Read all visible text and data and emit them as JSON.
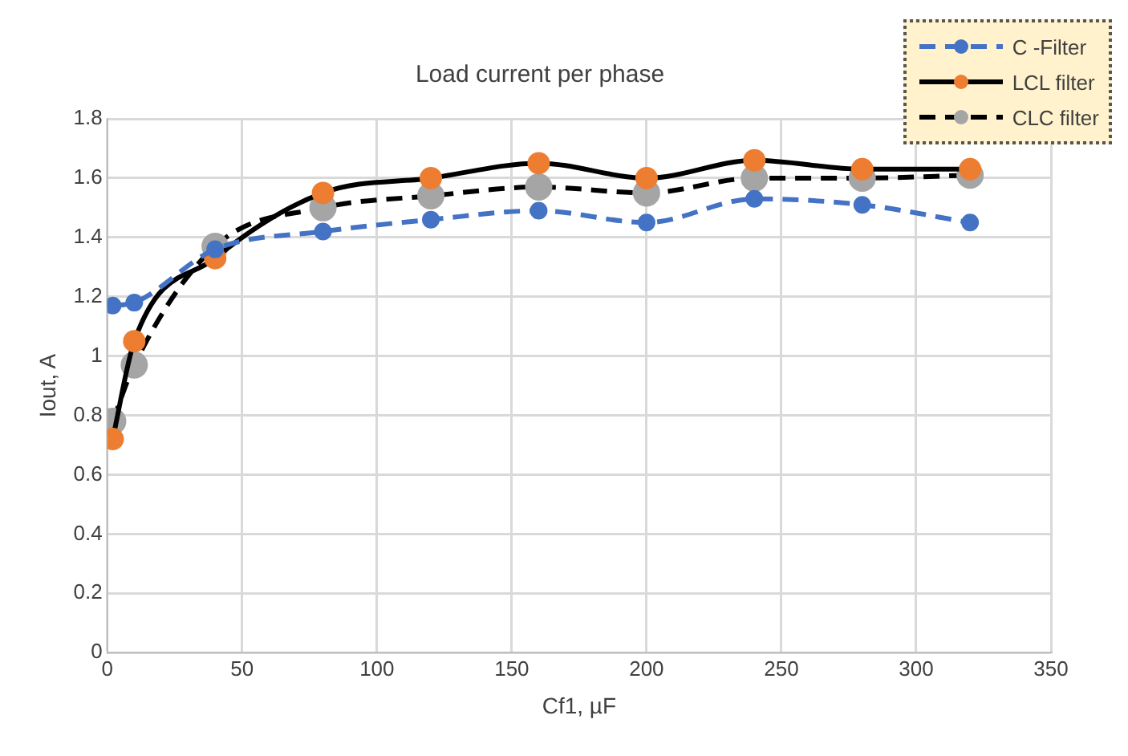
{
  "chart_data": {
    "type": "line",
    "title": "Load current per phase",
    "xlabel": "Cf1, µF",
    "ylabel": "Iout, A",
    "x": [
      2,
      10,
      40,
      80,
      120,
      160,
      200,
      240,
      280,
      320
    ],
    "series": [
      {
        "name": "C -Filter",
        "color": "#4472c4",
        "line_style": "dashed",
        "values": [
          1.17,
          1.18,
          1.36,
          1.42,
          1.46,
          1.49,
          1.45,
          1.53,
          1.51,
          1.45
        ]
      },
      {
        "name": "LCL filter",
        "color": "#000000",
        "colors": [
          "#ed7d31",
          "#ed7d31",
          "#ed7d31",
          "#ed7d31",
          "#ed7d31",
          "#ed7d31",
          "#ed7d31",
          "#ed7d31",
          "#ed7d31",
          "#ed7d31"
        ],
        "line_style": "solid",
        "values": [
          0.72,
          1.05,
          1.33,
          1.55,
          1.6,
          1.65,
          1.6,
          1.66,
          1.63,
          1.63
        ]
      },
      {
        "name": "CLC filter",
        "color": "#000000",
        "colors": [
          "#a5a5a5",
          "#a5a5a5",
          "#a5a5a5",
          "#a5a5a5",
          "#a5a5a5",
          "#a5a5a5",
          "#a5a5a5",
          "#a5a5a5",
          "#a5a5a5",
          "#a5a5a5"
        ],
        "line_style": "dashed",
        "values": [
          0.78,
          0.97,
          1.37,
          1.5,
          1.54,
          1.57,
          1.55,
          1.6,
          1.6,
          1.61
        ]
      }
    ],
    "xlim": [
      0,
      350
    ],
    "xticks": [
      0,
      50,
      100,
      150,
      200,
      250,
      300,
      350
    ],
    "ylim": [
      0,
      1.8
    ],
    "yticks": [
      0,
      0.2,
      0.4,
      0.6,
      0.8,
      1,
      1.2,
      1.4,
      1.6,
      1.8
    ],
    "grid": true,
    "legend": "top right",
    "marker": "circle"
  }
}
